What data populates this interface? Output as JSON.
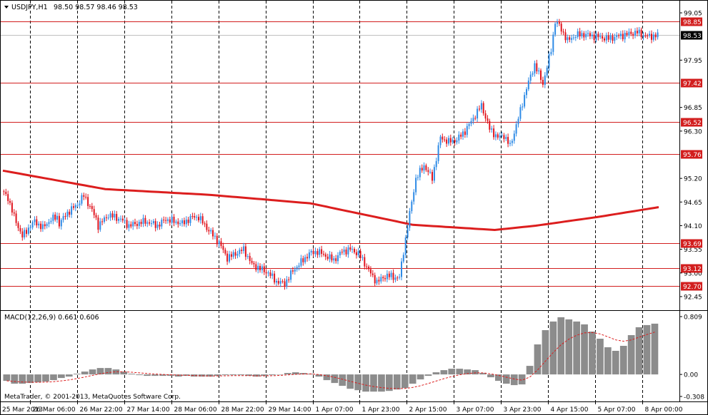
{
  "header": {
    "symbol_text": "USDJPY,H1",
    "ohlc_text": "98.50 98.57 98.46 98.53"
  },
  "macd_label": "MACD(12,26,9) 0.661 0.606",
  "copyright": "MetaTrader, © 2001-2013, MetaQuotes Software Corp.",
  "colors": {
    "bull": "#2f8be6",
    "bear": "#e0141e",
    "ma": "#dc1e1e",
    "level_line": "#d21e1e",
    "grid": "#000000",
    "macd_hist": "#8c8c8c",
    "macd_signal": "#dc1e1e",
    "current_price_bg": "#000000"
  },
  "chart_data": [
    {
      "type": "candlestick",
      "title": "USDJPY,H1",
      "ylim": [
        92.3,
        99.15
      ],
      "y_ticks": [
        "99.05",
        "97.95",
        "96.85",
        "96.30",
        "95.20",
        "94.65",
        "94.10",
        "93.55",
        "93.00",
        "92.45"
      ],
      "x_ticks": [
        "25 Mar 2013",
        "26 Mar 06:00",
        "26 Mar 22:00",
        "27 Mar 14:00",
        "28 Mar 06:00",
        "28 Mar 22:00",
        "29 Mar 14:00",
        "1 Apr 07:00",
        "1 Apr 23:00",
        "2 Apr 15:00",
        "3 Apr 07:00",
        "3 Apr 23:00",
        "4 Apr 15:00",
        "5 Apr 07:00",
        "8 Apr 00:00"
      ],
      "current_price": "98.53",
      "horizontal_levels": [
        "98.85",
        "97.42",
        "96.52",
        "95.76",
        "93.69",
        "93.12",
        "92.70"
      ],
      "price_path": {
        "times": [
          0,
          3,
          4,
          6,
          10,
          14,
          16,
          20,
          24,
          27,
          28,
          32,
          37,
          40,
          43,
          46,
          47,
          52,
          58,
          62,
          70,
          76,
          80,
          88,
          93,
          96,
          100,
          106,
          110,
          114,
          118,
          122,
          126,
          130,
          134,
          138,
          142,
          145,
          150,
          154,
          158,
          162,
          166,
          170,
          174,
          178,
          181,
          183,
          185,
          188,
          191,
          194,
          198,
          202,
          206,
          208,
          210,
          214,
          218,
          222,
          226,
          230,
          234,
          238,
          242,
          245,
          248,
          252,
          256,
          260,
          264,
          268,
          270,
          272,
          276,
          280,
          284,
          290,
          296,
          300,
          305,
          310,
          313,
          316,
          320
        ],
        "prices": [
          94.9,
          94.75,
          94.6,
          94.3,
          93.85,
          94.1,
          94.2,
          94.05,
          94.25,
          94.3,
          94.15,
          94.4,
          94.6,
          94.8,
          94.55,
          94.25,
          94.1,
          94.35,
          94.25,
          94.1,
          94.2,
          94.1,
          94.25,
          94.15,
          94.3,
          94.3,
          94.05,
          93.7,
          93.35,
          93.45,
          93.55,
          93.2,
          93.1,
          93.0,
          92.8,
          92.75,
          93.05,
          93.2,
          93.45,
          93.5,
          93.4,
          93.3,
          93.5,
          93.55,
          93.45,
          93.15,
          92.9,
          92.8,
          92.85,
          92.95,
          92.9,
          92.9,
          94.1,
          95.2,
          95.5,
          95.35,
          95.2,
          96.15,
          96.05,
          96.1,
          96.3,
          96.6,
          96.9,
          96.35,
          96.15,
          96.2,
          95.95,
          96.6,
          97.3,
          97.85,
          97.4,
          98.2,
          98.85,
          98.75,
          98.4,
          98.53,
          98.55,
          98.5,
          98.45,
          98.5,
          98.55,
          98.6,
          98.53,
          98.5,
          98.53
        ]
      },
      "moving_average": {
        "times": [
          0,
          50,
          100,
          150,
          200,
          240,
          260,
          290,
          320
        ],
        "prices": [
          95.38,
          94.95,
          94.82,
          94.62,
          94.12,
          94.0,
          94.1,
          94.3,
          94.53
        ]
      }
    },
    {
      "type": "bar",
      "title": "MACD(12,26,9) 0.661 0.606",
      "ylim": [
        -0.308,
        0.809
      ],
      "y_ticks": [
        "0.809",
        "0.00",
        "-0.308"
      ],
      "series": [
        {
          "name": "MACD",
          "values": [
            -0.09,
            -0.13,
            -0.13,
            -0.12,
            -0.11,
            -0.1,
            -0.08,
            -0.05,
            -0.03,
            0.01,
            0.04,
            0.07,
            0.09,
            0.09,
            0.07,
            0.04,
            0.01,
            -0.01,
            -0.02,
            -0.02,
            -0.02,
            -0.02,
            -0.03,
            -0.02,
            -0.03,
            -0.03,
            -0.03,
            -0.02,
            -0.01,
            -0.01,
            -0.01,
            -0.02,
            -0.03,
            -0.02,
            -0.01,
            0.0,
            0.02,
            0.03,
            0.02,
            0.01,
            -0.03,
            -0.08,
            -0.12,
            -0.16,
            -0.2,
            -0.22,
            -0.24,
            -0.24,
            -0.24,
            -0.23,
            -0.21,
            -0.19,
            -0.13,
            -0.07,
            -0.02,
            0.03,
            0.06,
            0.08,
            0.08,
            0.07,
            0.06,
            0.02,
            -0.04,
            -0.09,
            -0.13,
            -0.15,
            -0.14,
            0.12,
            0.42,
            0.62,
            0.74,
            0.8,
            0.77,
            0.74,
            0.7,
            0.6,
            0.5,
            0.38,
            0.33,
            0.4,
            0.55,
            0.66,
            0.69,
            0.71
          ]
        }
      ]
    }
  ]
}
